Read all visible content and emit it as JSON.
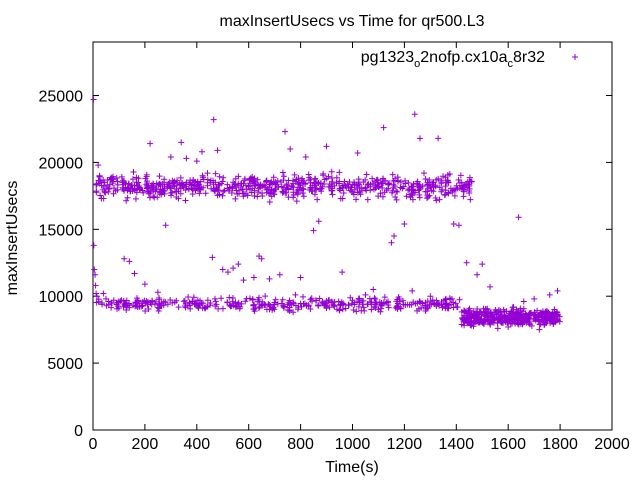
{
  "chart_data": {
    "type": "scatter",
    "title": "maxInsertUsecs vs Time for qr500.L3",
    "xlabel": "Time(s)",
    "ylabel": "maxInsertUsecs",
    "xlim": [
      0,
      2000
    ],
    "ylim": [
      0,
      29000
    ],
    "xticks": [
      0,
      200,
      400,
      600,
      800,
      1000,
      1200,
      1400,
      1600,
      1800,
      2000
    ],
    "yticks": [
      0,
      5000,
      10000,
      15000,
      20000,
      25000
    ],
    "legend": {
      "position": "top-right",
      "label_parts": [
        "pg1323",
        "o",
        "2nofp.cx10a",
        "c",
        "8r32"
      ]
    },
    "colors": {
      "series": "#9400d3",
      "axis": "#000000"
    },
    "series": [
      {
        "name": "pg1323_o2nofp.cx10a_c8r32",
        "bands": [
          {
            "x": [
              10,
              1460
            ],
            "y_center": 18200,
            "y_spread": 1300,
            "count": 700
          },
          {
            "x": [
              10,
              1420
            ],
            "y_center": 9400,
            "y_spread": 700,
            "count": 380
          },
          {
            "x": [
              1420,
              1800
            ],
            "y_center": 8400,
            "y_spread": 900,
            "count": 420
          }
        ],
        "points": [
          [
            2,
            24700
          ],
          [
            3,
            13800
          ],
          [
            5,
            12000
          ],
          [
            8,
            11600
          ],
          [
            10,
            10800
          ],
          [
            12,
            10200
          ],
          [
            15,
            10000
          ],
          [
            20,
            19800
          ],
          [
            25,
            19000
          ],
          [
            30,
            18600
          ],
          [
            40,
            10200
          ],
          [
            50,
            9800
          ],
          [
            60,
            9600
          ],
          [
            70,
            9500
          ],
          [
            80,
            9700
          ],
          [
            100,
            9600
          ],
          [
            120,
            12800
          ],
          [
            140,
            12600
          ],
          [
            160,
            11700
          ],
          [
            200,
            10900
          ],
          [
            220,
            21400
          ],
          [
            250,
            10300
          ],
          [
            280,
            15300
          ],
          [
            300,
            20400
          ],
          [
            340,
            21500
          ],
          [
            360,
            20300
          ],
          [
            400,
            20100
          ],
          [
            420,
            20800
          ],
          [
            460,
            12900
          ],
          [
            465,
            23200
          ],
          [
            470,
            9800
          ],
          [
            480,
            20900
          ],
          [
            500,
            12000
          ],
          [
            520,
            11800
          ],
          [
            540,
            12100
          ],
          [
            560,
            12400
          ],
          [
            580,
            11200
          ],
          [
            620,
            11400
          ],
          [
            640,
            13000
          ],
          [
            650,
            12800
          ],
          [
            680,
            11300
          ],
          [
            720,
            11600
          ],
          [
            740,
            22300
          ],
          [
            760,
            21000
          ],
          [
            780,
            10100
          ],
          [
            800,
            11400
          ],
          [
            820,
            20400
          ],
          [
            850,
            14900
          ],
          [
            870,
            15600
          ],
          [
            900,
            21200
          ],
          [
            920,
            19300
          ],
          [
            960,
            11800
          ],
          [
            1000,
            9700
          ],
          [
            1020,
            20700
          ],
          [
            1050,
            10100
          ],
          [
            1080,
            10500
          ],
          [
            1100,
            9000
          ],
          [
            1120,
            22600
          ],
          [
            1150,
            14000
          ],
          [
            1160,
            14500
          ],
          [
            1200,
            15400
          ],
          [
            1230,
            10400
          ],
          [
            1240,
            23600
          ],
          [
            1260,
            21800
          ],
          [
            1280,
            9300
          ],
          [
            1300,
            10000
          ],
          [
            1330,
            21800
          ],
          [
            1360,
            9800
          ],
          [
            1390,
            15400
          ],
          [
            1410,
            15300
          ],
          [
            1440,
            12500
          ],
          [
            1480,
            11600
          ],
          [
            1500,
            12400
          ],
          [
            1530,
            10700
          ],
          [
            1560,
            7600
          ],
          [
            1600,
            7700
          ],
          [
            1640,
            15900
          ],
          [
            1660,
            9600
          ],
          [
            1700,
            9800
          ],
          [
            1720,
            7500
          ],
          [
            1760,
            10100
          ],
          [
            1790,
            10400
          ]
        ]
      }
    ]
  }
}
